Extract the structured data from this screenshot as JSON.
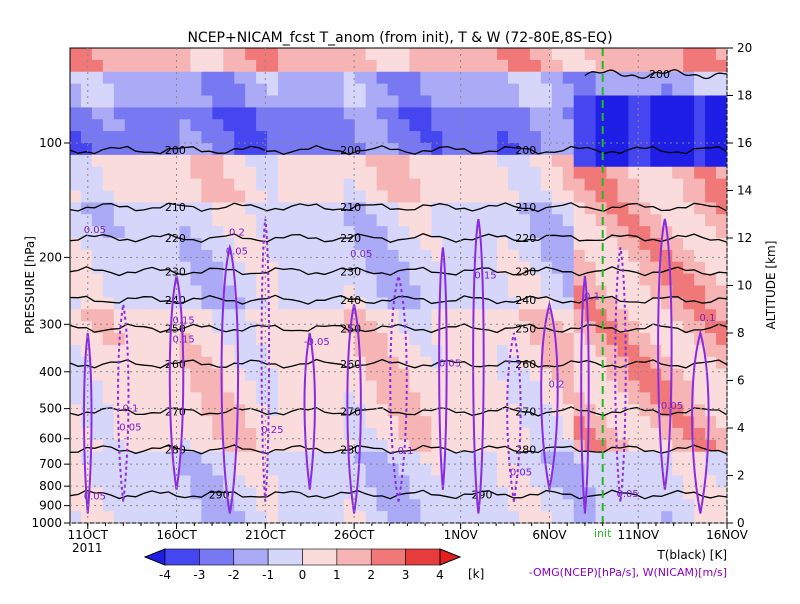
{
  "chart_data": {
    "type": "heatmap",
    "title": "NCEP+NICAM_fcst T_anom (from init), T & W  (72-80E,8S-EQ)",
    "ylabel_left": "PRESSURE [hPa]",
    "ylabel_right": "ALTITUDE [km]",
    "x_ticks": [
      "11OCT",
      "16OCT",
      "21OCT",
      "26OCT",
      "1NOV",
      "6NOV",
      "11NOV",
      "16NOV"
    ],
    "x_year": "2011",
    "init_label": "init",
    "init_date": "9NOV",
    "xlim": [
      "10OCT",
      "16NOV"
    ],
    "y_ticks_pressure": [
      "100",
      "200",
      "300",
      "400",
      "500",
      "600",
      "700",
      "800",
      "900",
      "1000"
    ],
    "y_ticks_altitude": [
      "0",
      "2",
      "4",
      "6",
      "8",
      "10",
      "12",
      "14",
      "16",
      "18",
      "20"
    ],
    "ylim_altitude_km": [
      0,
      20
    ],
    "colorbar": {
      "levels": [
        "-4",
        "-3",
        "-2",
        "-1",
        "0",
        "1",
        "2",
        "3",
        "4"
      ],
      "unit": "[k]",
      "colors": [
        "#1e1ee6",
        "#4646f0",
        "#7878f2",
        "#aaaaf6",
        "#d6d6fa",
        "#fadcdc",
        "#f6b4b4",
        "#f07878",
        "#e63c3c",
        "#e61e1e"
      ]
    },
    "legend": {
      "temperature": "T(black) [K]",
      "omega": "-OMG(NCEP)[hPa/s], W(NICAM)[m/s]"
    },
    "temperature_isotherms_K": [
      {
        "value": 200,
        "altitude_km": 15.7,
        "labels": [
          "200",
          "200",
          "200"
        ]
      },
      {
        "value": 210,
        "altitude_km": 13.3,
        "labels": [
          "210",
          "210",
          "210"
        ]
      },
      {
        "value": 220,
        "altitude_km": 12.0,
        "labels": [
          "220",
          "220",
          "220"
        ]
      },
      {
        "value": 230,
        "altitude_km": 10.6,
        "labels": [
          "230",
          "230",
          "230"
        ]
      },
      {
        "value": 240,
        "altitude_km": 9.4,
        "labels": [
          "240",
          "240",
          "240"
        ]
      },
      {
        "value": 250,
        "altitude_km": 8.2,
        "labels": [
          "250",
          "250",
          "250"
        ]
      },
      {
        "value": 260,
        "altitude_km": 6.7,
        "labels": [
          "260",
          "260",
          "260"
        ]
      },
      {
        "value": 270,
        "altitude_km": 4.7,
        "labels": [
          "270",
          "270",
          "270"
        ]
      },
      {
        "value": 280,
        "altitude_km": 3.1,
        "labels": [
          "280",
          "280",
          "280"
        ]
      },
      {
        "value": 290,
        "altitude_km": 1.2,
        "labels": [
          "290",
          "290"
        ]
      },
      {
        "value": 200,
        "altitude_km": 18.9,
        "labels": [
          "200"
        ]
      }
    ],
    "omega_labels": [
      "0.05",
      "0.1",
      "0.15",
      "0.2",
      "0.25",
      "-0.05",
      "0.05",
      "0.1",
      "0.05",
      "0.15",
      "0.05",
      "0.2",
      "0.1",
      "0.05",
      "0.05",
      "0.1",
      "0.05",
      "0.05",
      "0.15",
      "0.05"
    ],
    "anomaly_bands": [
      {
        "alt_from": 19.0,
        "alt_to": 20.0,
        "value": 2
      },
      {
        "alt_from": 17.5,
        "alt_to": 19.0,
        "value": -1
      },
      {
        "alt_from": 15.5,
        "alt_to": 17.5,
        "value": -2
      },
      {
        "alt_from": 13.5,
        "alt_to": 15.5,
        "value": 1
      },
      {
        "alt_from": 9.0,
        "alt_to": 13.5,
        "value": 0
      },
      {
        "alt_from": 3.0,
        "alt_to": 9.0,
        "value": 1
      },
      {
        "alt_from": 0.0,
        "alt_to": 3.0,
        "value": 0
      }
    ]
  }
}
